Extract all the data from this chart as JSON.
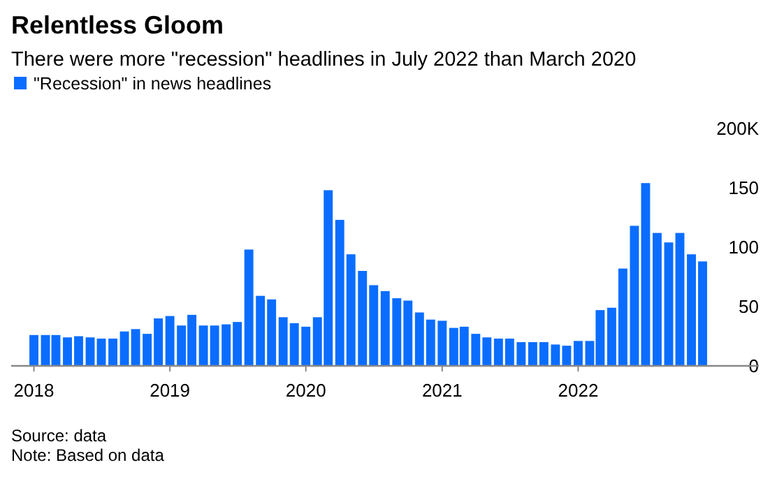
{
  "chart_data": {
    "type": "bar",
    "title": "Relentless Gloom",
    "subtitle": "There were more \"recession\" headlines in July 2022 than March 2020",
    "x": [
      "2018-01",
      "2018-02",
      "2018-03",
      "2018-04",
      "2018-05",
      "2018-06",
      "2018-07",
      "2018-08",
      "2018-09",
      "2018-10",
      "2018-11",
      "2018-12",
      "2019-01",
      "2019-02",
      "2019-03",
      "2019-04",
      "2019-05",
      "2019-06",
      "2019-07",
      "2019-08",
      "2019-09",
      "2019-10",
      "2019-11",
      "2019-12",
      "2020-01",
      "2020-02",
      "2020-03",
      "2020-04",
      "2020-05",
      "2020-06",
      "2020-07",
      "2020-08",
      "2020-09",
      "2020-10",
      "2020-11",
      "2020-12",
      "2021-01",
      "2021-02",
      "2021-03",
      "2021-04",
      "2021-05",
      "2021-06",
      "2021-07",
      "2021-08",
      "2021-09",
      "2021-10",
      "2021-11",
      "2021-12",
      "2022-01",
      "2022-02",
      "2022-03",
      "2022-04",
      "2022-05",
      "2022-06",
      "2022-07",
      "2022-08",
      "2022-09",
      "2022-10",
      "2022-11",
      "2022-12"
    ],
    "series": [
      {
        "name": "\"Recession\" in news headlines",
        "color": "#0a6dff",
        "values": [
          26,
          26,
          26,
          24,
          25,
          24,
          23,
          23,
          29,
          31,
          27,
          40,
          42,
          34,
          43,
          34,
          34,
          35,
          37,
          98,
          59,
          56,
          41,
          36,
          33,
          41,
          148,
          123,
          94,
          80,
          68,
          63,
          57,
          55,
          45,
          39,
          38,
          32,
          33,
          27,
          24,
          23,
          23,
          20,
          20,
          20,
          18,
          17,
          21,
          21,
          47,
          49,
          82,
          118,
          154,
          112,
          104,
          112,
          94,
          88
        ]
      }
    ],
    "xlim": [
      "2017-11",
      "2023-05"
    ],
    "xticks": [
      "2018",
      "2019",
      "2020",
      "2021",
      "2022"
    ],
    "ylim": [
      0,
      200
    ],
    "yticks": [
      0,
      50,
      100,
      150,
      {
        "value": 200,
        "label": "200K"
      }
    ],
    "legend": "top left",
    "grid": false,
    "annotations": [
      "Source: data",
      "Note: Based on data"
    ]
  }
}
